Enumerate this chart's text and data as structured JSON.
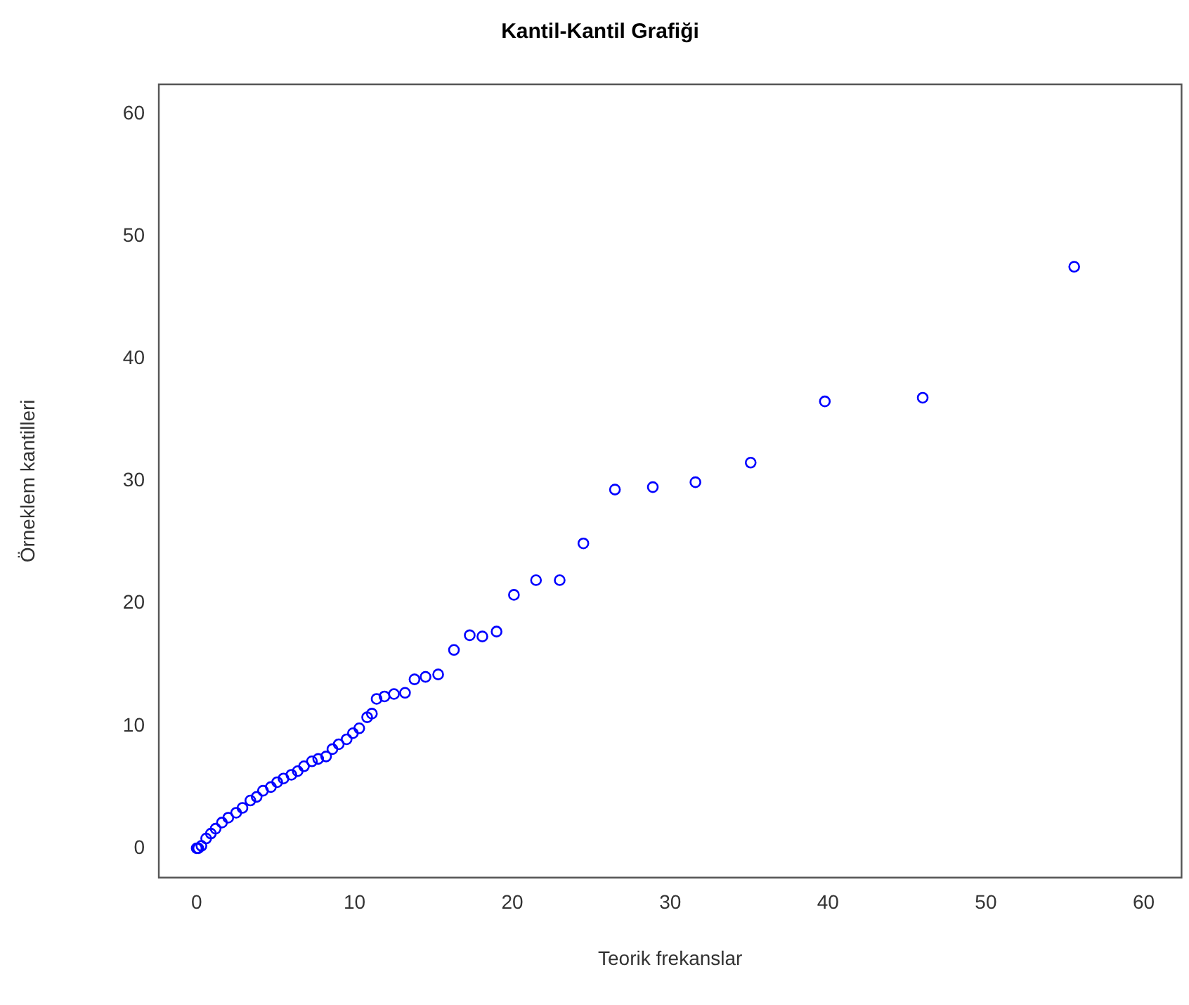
{
  "chart_data": {
    "type": "scatter",
    "title": "Kantil-Kantil Grafiği",
    "xlabel": "Teorik frekanslar",
    "ylabel": "Örneklem kantilleri",
    "xlim": [
      -2.4,
      62.4
    ],
    "ylim": [
      -2.4,
      62.4
    ],
    "xticks": [
      0,
      10,
      20,
      30,
      40,
      50,
      60
    ],
    "yticks": [
      0,
      10,
      20,
      30,
      40,
      50,
      60
    ],
    "grid": false,
    "legend": false,
    "marker": "circle",
    "series": [
      {
        "color": "#0000ff",
        "x": [
          0,
          0.1,
          0.3,
          0.6,
          0.9,
          1.2,
          1.6,
          2.0,
          2.5,
          2.9,
          3.4,
          3.8,
          4.2,
          4.7,
          5.1,
          5.5,
          6.0,
          6.4,
          6.8,
          7.3,
          7.7,
          8.2,
          8.6,
          9.0,
          9.5,
          9.9,
          10.3,
          10.8,
          11.1,
          11.4,
          11.9,
          12.5,
          13.2,
          13.8,
          14.5,
          15.3,
          16.3,
          17.3,
          18.1,
          19.0,
          20.1,
          21.5,
          23.0,
          24.5,
          26.5,
          28.9,
          31.6,
          35.1,
          39.8,
          46.0,
          55.6
        ],
        "values": [
          0,
          0.0,
          0.2,
          0.8,
          1.2,
          1.6,
          2.1,
          2.5,
          2.9,
          3.3,
          3.9,
          4.2,
          4.7,
          5.0,
          5.4,
          5.7,
          6.0,
          6.3,
          6.7,
          7.1,
          7.3,
          7.5,
          8.1,
          8.5,
          8.9,
          9.4,
          9.8,
          10.7,
          11.0,
          12.2,
          12.4,
          12.6,
          12.7,
          13.8,
          14.0,
          14.2,
          16.2,
          17.4,
          17.3,
          17.7,
          20.7,
          21.9,
          21.9,
          24.9,
          29.3,
          29.5,
          29.9,
          31.5,
          36.5,
          36.8,
          47.5
        ]
      }
    ]
  }
}
